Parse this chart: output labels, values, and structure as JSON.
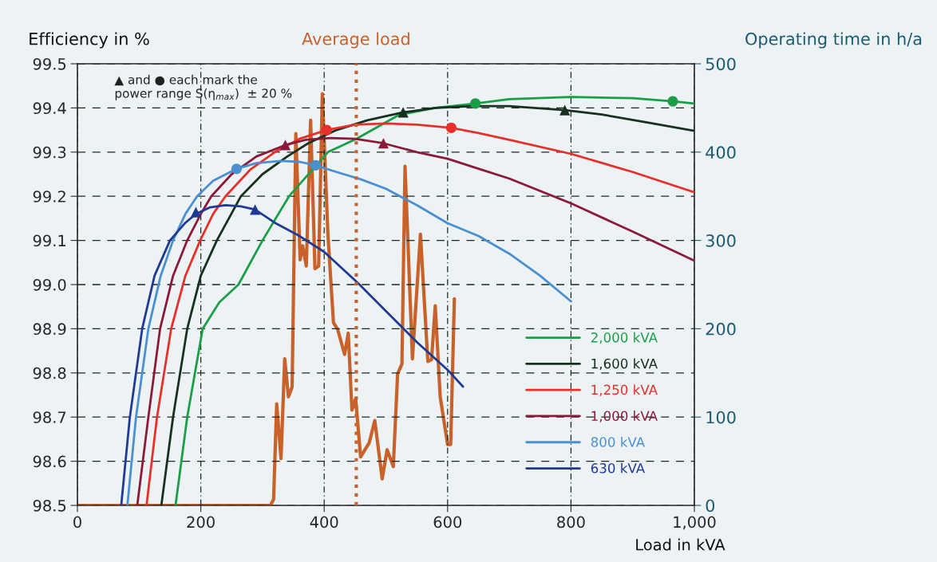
{
  "chart_data": {
    "type": "line",
    "ylabel": "Efficiency in %",
    "y2label": "Operating time in h/a",
    "xlabel": "Load in kVA",
    "annotations": [
      "▲ and ● each mark the\npower range S(η$_{max}$)  ± 20 %"
    ],
    "xlim": [
      0,
      1000
    ],
    "xticks": [
      0,
      200,
      400,
      600,
      800,
      {
        "value": 1000,
        "label": "1,000"
      }
    ],
    "ylim": [
      98.5,
      99.5
    ],
    "yticks": [
      98.5,
      98.6,
      98.7,
      98.8,
      98.9,
      {
        "value": 99.0,
        "label": "99.0"
      },
      99.1,
      99.2,
      99.3,
      99.4,
      99.5
    ],
    "y2lim": [
      0,
      500
    ],
    "y2ticks": [
      0,
      100,
      200,
      300,
      400,
      500
    ],
    "grid": true,
    "legend": "bottom right",
    "line_style": "solid",
    "ref_lines": [
      {
        "axis": "x",
        "value": 452,
        "label": "Average load",
        "color": "#c8622a",
        "line_style": "dotted"
      }
    ],
    "series": [
      {
        "name": "2,000 kVA",
        "color": "#1a9e48",
        "x": [
          159,
          178,
          203,
          230,
          261,
          300,
          343,
          406,
          452,
          521,
          580,
          645,
          700,
          800,
          900,
          965,
          1000
        ],
        "values": [
          98.5,
          98.7,
          98.9,
          98.96,
          99.0,
          99.1,
          99.2,
          99.3,
          99.33,
          99.384,
          99.4,
          99.41,
          99.42,
          99.425,
          99.422,
          99.415,
          99.41
        ]
      },
      {
        "name": "1,600 kVA",
        "color": "#17301f",
        "x": [
          136,
          155,
          178,
          200,
          226,
          265,
          300,
          340,
          374,
          420,
          470,
          528,
          580,
          640,
          700,
          790,
          850,
          920,
          1000
        ],
        "values": [
          98.5,
          98.7,
          98.9,
          99.02,
          99.1,
          99.2,
          99.25,
          99.29,
          99.32,
          99.35,
          99.372,
          99.39,
          99.4,
          99.404,
          99.404,
          99.395,
          99.385,
          99.368,
          99.348
        ]
      },
      {
        "name": "1,250 kVA",
        "color": "#e8302a",
        "x": [
          112,
          129,
          152,
          175,
          199,
          220,
          240,
          280,
          320,
          360,
          404,
          450,
          500,
          550,
          606,
          650,
          700,
          800,
          900,
          1000
        ],
        "values": [
          98.5,
          98.7,
          98.9,
          99.02,
          99.1,
          99.16,
          99.2,
          99.26,
          99.3,
          99.33,
          99.35,
          99.362,
          99.365,
          99.362,
          99.355,
          99.343,
          99.328,
          99.296,
          99.255,
          99.209
        ]
      },
      {
        "name": "1,000 kVA",
        "color": "#8b1a3a",
        "x": [
          97,
          115,
          134,
          155,
          178,
          200,
          217,
          250,
          290,
          337,
          370,
          410,
          450,
          496,
          550,
          600,
          651,
          700,
          800,
          900,
          1000
        ],
        "values": [
          98.5,
          98.7,
          98.9,
          99.02,
          99.1,
          99.16,
          99.2,
          99.25,
          99.29,
          99.316,
          99.328,
          99.332,
          99.33,
          99.32,
          99.3,
          99.285,
          99.262,
          99.24,
          99.184,
          99.12,
          99.054
        ]
      },
      {
        "name": "800 kVA",
        "color": "#4a90d0",
        "x": [
          81,
          95,
          115,
          135,
          155,
          175,
          194,
          220,
          258,
          290,
          330,
          360,
          386,
          420,
          460,
          500,
          550,
          600,
          650,
          700,
          750,
          800
        ],
        "values": [
          98.5,
          98.7,
          98.9,
          99.02,
          99.1,
          99.16,
          99.2,
          99.235,
          99.262,
          99.275,
          99.28,
          99.278,
          99.27,
          99.255,
          99.238,
          99.217,
          99.18,
          99.139,
          99.11,
          99.07,
          99.02,
          98.962
        ]
      },
      {
        "name": "630 kVA",
        "color": "#1f3a93",
        "x": [
          71,
          85,
          105,
          125,
          150,
          175,
          192,
          215,
          240,
          265,
          288,
          320,
          360,
          400,
          455,
          500,
          550,
          600,
          625
        ],
        "values": [
          98.5,
          98.7,
          98.9,
          99.02,
          99.1,
          99.14,
          99.16,
          99.175,
          99.18,
          99.177,
          99.17,
          99.14,
          99.11,
          99.074,
          99.003,
          98.94,
          98.87,
          98.807,
          98.769
        ]
      },
      {
        "type": "scatter",
        "marker": "circle",
        "color": "#1a9e48",
        "x": [
          645,
          965
        ],
        "values": [
          99.41,
          99.415
        ]
      },
      {
        "type": "scatter",
        "marker": "triangle",
        "color": "#17301f",
        "x": [
          528,
          790
        ],
        "values": [
          99.39,
          99.395
        ]
      },
      {
        "type": "scatter",
        "marker": "circle",
        "color": "#e8302a",
        "x": [
          404,
          606
        ],
        "values": [
          99.35,
          99.355
        ]
      },
      {
        "type": "scatter",
        "marker": "triangle",
        "color": "#8b1a3a",
        "x": [
          337,
          496
        ],
        "values": [
          99.316,
          99.32
        ]
      },
      {
        "type": "scatter",
        "marker": "circle",
        "color": "#4a90d0",
        "x": [
          258,
          386
        ],
        "values": [
          99.262,
          99.27
        ]
      },
      {
        "type": "scatter",
        "marker": "triangle",
        "color": "#1f3a93",
        "x": [
          192,
          288
        ],
        "values": [
          99.164,
          99.17
        ]
      },
      {
        "axis": "y2",
        "color": "#c8622a",
        "x": [
          0,
          313,
          318,
          323,
          330,
          336,
          342,
          348,
          354,
          361,
          365,
          371,
          378,
          385,
          391,
          397,
          406,
          415,
          422,
          433,
          439,
          445,
          451,
          459,
          473,
          482,
          494,
          502,
          512,
          519,
          526,
          531,
          543,
          556,
          568,
          574,
          580,
          588,
          600,
          605,
          611
        ],
        "values": [
          0,
          0,
          7,
          115,
          53,
          166,
          123,
          134,
          421,
          278,
          294,
          271,
          436,
          268,
          271,
          466,
          307,
          207,
          199,
          171,
          195,
          108,
          121,
          55,
          71,
          96,
          30,
          63,
          44,
          149,
          160,
          384,
          166,
          307,
          163,
          165,
          226,
          123,
          69,
          69,
          234
        ]
      }
    ]
  }
}
